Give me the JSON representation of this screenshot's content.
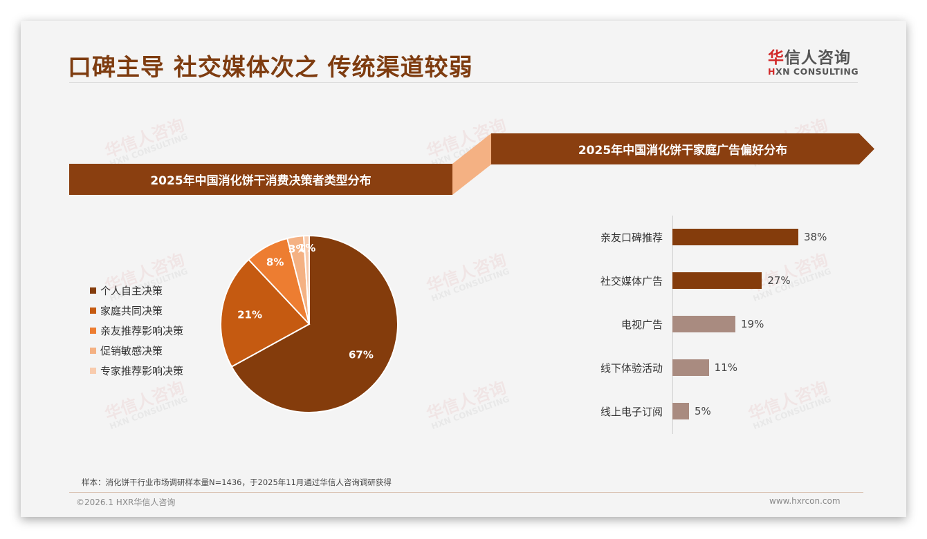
{
  "header": {
    "title": "口碑主导 社交媒体次之 传统渠道较弱",
    "logo": {
      "cn_accent": "华",
      "cn_rest": "信人咨询",
      "en_accent": "H",
      "en_rest": "XN CONSULTING"
    }
  },
  "watermark": {
    "cn": "华信人咨询",
    "en": "HXN CONSULTING"
  },
  "left_panel": {
    "banner": "2025年中国消化饼干消费决策者类型分布",
    "legend": [
      {
        "label": "个人自主决策",
        "color": "#843c0c"
      },
      {
        "label": "家庭共同决策",
        "color": "#c55a11"
      },
      {
        "label": "亲友推荐影响决策",
        "color": "#ed7d31"
      },
      {
        "label": "促销敏感决策",
        "color": "#f4b183"
      },
      {
        "label": "专家推荐影响决策",
        "color": "#f8cbad"
      }
    ]
  },
  "right_panel": {
    "banner": "2025年中国消化饼干家庭广告偏好分布"
  },
  "chart_data": [
    {
      "type": "pie",
      "title": "2025年中国消化饼干消费决策者类型分布",
      "categories": [
        "个人自主决策",
        "家庭共同决策",
        "亲友推荐影响决策",
        "促销敏感决策",
        "专家推荐影响决策"
      ],
      "values": [
        67,
        21,
        8,
        3,
        1
      ],
      "labels": [
        "67%",
        "21%",
        "8%",
        "3%",
        "1%"
      ],
      "colors": [
        "#843c0c",
        "#c55a11",
        "#ed7d31",
        "#f4b183",
        "#f8cbad"
      ],
      "legend_position": "left"
    },
    {
      "type": "bar",
      "orientation": "horizontal",
      "title": "2025年中国消化饼干家庭广告偏好分布",
      "categories": [
        "亲友口碑推荐",
        "社交媒体广告",
        "电视广告",
        "线下体验活动",
        "线上电子订阅"
      ],
      "values": [
        38,
        27,
        19,
        11,
        5
      ],
      "labels": [
        "38%",
        "27%",
        "19%",
        "11%",
        "5%"
      ],
      "colors": [
        "#843c0c",
        "#843c0c",
        "#a98b80",
        "#a98b80",
        "#a98b80"
      ],
      "xlim": [
        0,
        40
      ],
      "grid": false
    }
  ],
  "footer": {
    "note": "样本：消化饼干行业市场调研样本量N=1436，于2025年11月通过华信人咨询调研获得",
    "copyright": "©2026.1 HXR华信人咨询",
    "website": "www.hxrcon.com"
  }
}
